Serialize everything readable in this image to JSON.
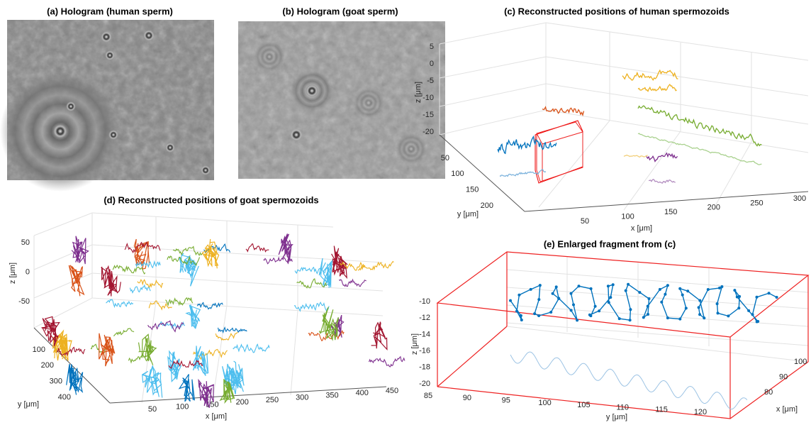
{
  "panels": [
    {
      "title": "(a) Hologram (human sperm)"
    },
    {
      "title": "(b) Hologram (goat sperm)"
    },
    {
      "title": "(c) Reconstructed positions of human spermozoids",
      "x_label": "x [μm]",
      "y_label": "y [μm]",
      "z_label": "z [μm]",
      "xticks": [
        50,
        100,
        150,
        200,
        250,
        300
      ],
      "yticks": [
        50,
        100,
        150,
        200
      ],
      "zticks": [
        5,
        0,
        -5,
        -10,
        -15,
        -20
      ]
    },
    {
      "title": "(d) Reconstructed positions of goat spermozoids",
      "x_label": "x [μm]",
      "y_label": "y [μm]",
      "z_label": "z [μm]",
      "xticks": [
        50,
        100,
        150,
        200,
        250,
        300,
        350,
        400,
        450
      ],
      "yticks": [
        100,
        200,
        300,
        400
      ],
      "zticks": [
        50,
        0,
        -50
      ]
    },
    {
      "title": "(e) Enlarged fragment from (c)",
      "x_label": "x [μm]",
      "y_label": "y [μm]",
      "z_label": "z [μm]",
      "xticks": [
        100,
        90,
        80
      ],
      "yticks": [
        85,
        90,
        95,
        100,
        105,
        110,
        115,
        120
      ],
      "zticks": [
        -10,
        -12,
        -14,
        -16,
        -18,
        -20
      ]
    }
  ]
}
